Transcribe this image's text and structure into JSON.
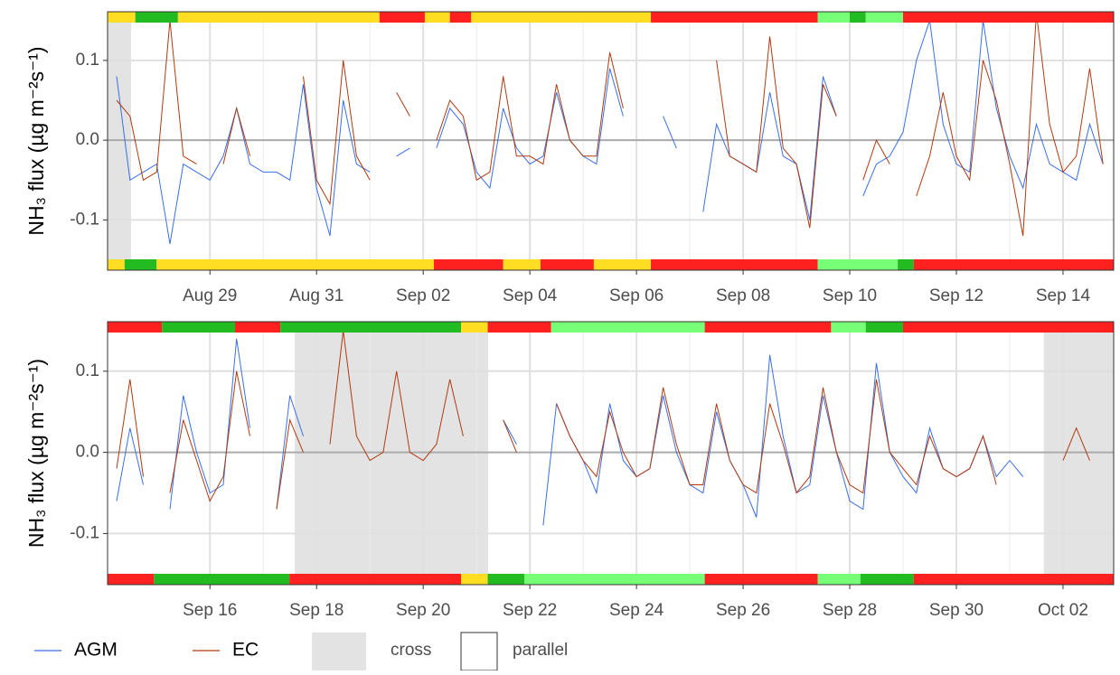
{
  "chart_data": [
    {
      "type": "line",
      "y_label": "NH₃ flux (µg m⁻²s⁻¹)",
      "xlim": [
        27.08,
        45.95
      ],
      "xticks": [
        {
          "value": 29,
          "label": "Aug 29"
        },
        {
          "value": 31,
          "label": "Aug 31"
        },
        {
          "value": 33,
          "label": "Sep 02"
        },
        {
          "value": 35,
          "label": "Sep 04"
        },
        {
          "value": 37,
          "label": "Sep 06"
        },
        {
          "value": 39,
          "label": "Sep 08"
        },
        {
          "value": 41,
          "label": "Sep 10"
        },
        {
          "value": 43,
          "label": "Sep 12"
        },
        {
          "value": 45,
          "label": "Sep 14"
        }
      ],
      "ylim": [
        -0.163,
        0.161
      ],
      "yticks": [
        -0.1,
        {
          "value": 0,
          "label": "0.0"
        },
        0.1
      ],
      "grid": true,
      "regions": [
        {
          "name": "cross",
          "color": "#e3e3e3"
        },
        {
          "name": "parallel",
          "color": "#ffffff"
        }
      ],
      "cross_periods": [
        [
          27.08,
          27.52
        ]
      ],
      "flags_top": [
        [
          27.08,
          27.6,
          "#ffdd22"
        ],
        [
          27.6,
          28.4,
          "#22bb22"
        ],
        [
          28.4,
          32.18,
          "#ffdd22"
        ],
        [
          32.18,
          33.03,
          "#ff2020"
        ],
        [
          33.03,
          33.5,
          "#ffdd22"
        ],
        [
          33.5,
          33.9,
          "#ff2020"
        ],
        [
          33.9,
          37.27,
          "#ffdd22"
        ],
        [
          37.27,
          40.4,
          "#ff2020"
        ],
        [
          40.4,
          41.0,
          "#77ff77"
        ],
        [
          41.0,
          41.3,
          "#22bb22"
        ],
        [
          41.3,
          42.0,
          "#77ff77"
        ],
        [
          42.0,
          45.95,
          "#ff2020"
        ]
      ],
      "flags_bottom": [
        [
          27.08,
          27.4,
          "#ffdd22"
        ],
        [
          27.4,
          28.0,
          "#22bb22"
        ],
        [
          28.0,
          33.2,
          "#ffdd22"
        ],
        [
          33.2,
          34.5,
          "#ff2020"
        ],
        [
          34.5,
          35.2,
          "#ffdd22"
        ],
        [
          35.2,
          36.2,
          "#ff2020"
        ],
        [
          36.2,
          37.27,
          "#ffdd22"
        ],
        [
          37.27,
          40.4,
          "#ff2020"
        ],
        [
          40.4,
          41.9,
          "#77ff77"
        ],
        [
          41.9,
          42.2,
          "#22bb22"
        ],
        [
          42.2,
          45.95,
          "#ff2020"
        ]
      ],
      "x": [
        27.25,
        27.5,
        27.75,
        28,
        28.25,
        28.5,
        28.75,
        29,
        29.25,
        29.5,
        29.75,
        30,
        30.25,
        30.5,
        30.75,
        31,
        31.25,
        31.5,
        31.75,
        32,
        32.25,
        32.5,
        32.75,
        33,
        33.25,
        33.5,
        33.75,
        34,
        34.25,
        34.5,
        34.75,
        35,
        35.25,
        35.5,
        35.75,
        36,
        36.25,
        36.5,
        36.75,
        37,
        37.25,
        37.5,
        37.75,
        38,
        38.25,
        38.5,
        38.75,
        39,
        39.25,
        39.5,
        39.75,
        40,
        40.25,
        40.5,
        40.75,
        41,
        41.25,
        41.5,
        41.75,
        42,
        42.25,
        42.5,
        42.75,
        43,
        43.25,
        43.5,
        43.75,
        44,
        44.25,
        44.5,
        44.75,
        45,
        45.25,
        45.5,
        45.75
      ],
      "series": [
        {
          "name": "AGM",
          "color": "#3a6fe8",
          "values": [
            0.08,
            -0.05,
            -0.04,
            -0.03,
            -0.13,
            -0.03,
            -0.04,
            -0.05,
            -0.02,
            0.04,
            -0.03,
            -0.04,
            -0.04,
            -0.05,
            0.07,
            -0.06,
            -0.12,
            0.05,
            -0.03,
            -0.04,
            null,
            -0.02,
            -0.01,
            null,
            -0.01,
            0.04,
            0.02,
            -0.04,
            -0.06,
            0.04,
            -0.01,
            -0.03,
            -0.02,
            0.06,
            0.0,
            -0.02,
            -0.03,
            0.09,
            0.03,
            null,
            null,
            0.03,
            -0.01,
            null,
            -0.09,
            0.02,
            -0.02,
            -0.03,
            -0.04,
            0.06,
            -0.02,
            -0.03,
            -0.1,
            0.08,
            0.03,
            null,
            -0.07,
            -0.03,
            -0.02,
            0.01,
            0.1,
            0.15,
            0.02,
            -0.03,
            -0.04,
            0.15,
            0.04,
            -0.02,
            -0.06,
            0.02,
            -0.03,
            -0.04,
            -0.05,
            0.02,
            -0.03
          ]
        },
        {
          "name": "EC",
          "color": "#b03a10",
          "values": [
            0.05,
            0.03,
            -0.05,
            -0.04,
            0.15,
            -0.02,
            -0.03,
            null,
            -0.03,
            0.04,
            -0.02,
            null,
            null,
            null,
            0.08,
            -0.05,
            -0.08,
            0.1,
            -0.02,
            -0.05,
            null,
            0.06,
            0.03,
            null,
            0.0,
            0.05,
            0.03,
            -0.05,
            -0.04,
            0.08,
            -0.02,
            -0.02,
            -0.03,
            0.07,
            0.0,
            -0.02,
            -0.02,
            0.11,
            0.04,
            null,
            null,
            null,
            0.03,
            null,
            null,
            0.1,
            -0.02,
            -0.03,
            -0.04,
            0.13,
            -0.01,
            -0.03,
            -0.11,
            0.07,
            0.03,
            null,
            -0.05,
            0.0,
            -0.03,
            null,
            -0.07,
            -0.02,
            0.06,
            -0.02,
            -0.05,
            0.1,
            0.05,
            -0.03,
            -0.12,
            0.16,
            0.02,
            -0.04,
            -0.02,
            0.09,
            -0.03
          ]
        }
      ]
    },
    {
      "type": "line",
      "y_label": "NH₃ flux (µg m⁻²s⁻¹)",
      "xlim": [
        45.08,
        63.95
      ],
      "xticks": [
        {
          "value": 47,
          "label": "Sep 16"
        },
        {
          "value": 49,
          "label": "Sep 18"
        },
        {
          "value": 51,
          "label": "Sep 20"
        },
        {
          "value": 53,
          "label": "Sep 22"
        },
        {
          "value": 55,
          "label": "Sep 24"
        },
        {
          "value": 57,
          "label": "Sep 26"
        },
        {
          "value": 59,
          "label": "Sep 28"
        },
        {
          "value": 61,
          "label": "Sep 30"
        },
        {
          "value": 63,
          "label": "Oct 02"
        }
      ],
      "ylim": [
        -0.163,
        0.161
      ],
      "yticks": [
        -0.1,
        {
          "value": 0,
          "label": "0.0"
        },
        0.1
      ],
      "grid": true,
      "cross_periods": [
        [
          48.59,
          52.22
        ],
        [
          62.64,
          63.95
        ]
      ],
      "flags_top": [
        [
          45.08,
          46.1,
          "#ff2020"
        ],
        [
          46.1,
          47.47,
          "#22bb22"
        ],
        [
          47.47,
          48.32,
          "#ff2020"
        ],
        [
          48.32,
          51.71,
          "#22bb22"
        ],
        [
          51.71,
          52.21,
          "#ffdd22"
        ],
        [
          52.21,
          53.4,
          "#ff2020"
        ],
        [
          53.4,
          56.28,
          "#77ff77"
        ],
        [
          56.28,
          58.65,
          "#ff2020"
        ],
        [
          58.65,
          59.3,
          "#77ff77"
        ],
        [
          59.3,
          60.0,
          "#22bb22"
        ],
        [
          60.0,
          63.95,
          "#ff2020"
        ]
      ],
      "flags_bottom": [
        [
          45.08,
          45.95,
          "#ff2020"
        ],
        [
          45.95,
          48.49,
          "#22bb22"
        ],
        [
          48.49,
          51.71,
          "#ff2020"
        ],
        [
          51.71,
          52.21,
          "#ffdd22"
        ],
        [
          52.21,
          52.9,
          "#22bb22"
        ],
        [
          52.9,
          56.28,
          "#77ff77"
        ],
        [
          56.28,
          58.4,
          "#ff2020"
        ],
        [
          58.4,
          59.2,
          "#77ff77"
        ],
        [
          59.2,
          60.2,
          "#22bb22"
        ],
        [
          60.2,
          63.95,
          "#ff2020"
        ]
      ],
      "x": [
        45.25,
        45.5,
        45.75,
        46,
        46.25,
        46.5,
        46.75,
        47,
        47.25,
        47.5,
        47.75,
        48,
        48.25,
        48.5,
        48.75,
        49,
        49.25,
        49.5,
        49.75,
        50,
        50.25,
        50.5,
        50.75,
        51,
        51.25,
        51.5,
        51.75,
        52,
        52.25,
        52.5,
        52.75,
        53,
        53.25,
        53.5,
        53.75,
        54,
        54.25,
        54.5,
        54.75,
        55,
        55.25,
        55.5,
        55.75,
        56,
        56.25,
        56.5,
        56.75,
        57,
        57.25,
        57.5,
        57.75,
        58,
        58.25,
        58.5,
        58.75,
        59,
        59.25,
        59.5,
        59.75,
        60,
        60.25,
        60.5,
        60.75,
        61,
        61.25,
        61.5,
        61.75,
        62,
        62.25,
        62.5,
        62.75,
        63,
        63.25,
        63.5,
        63.75
      ],
      "series": [
        {
          "name": "AGM",
          "color": "#3a6fe8",
          "values": [
            -0.06,
            0.03,
            -0.04,
            null,
            -0.07,
            0.07,
            0.0,
            -0.05,
            -0.04,
            0.14,
            0.03,
            null,
            -0.07,
            0.07,
            0.02,
            null,
            null,
            null,
            null,
            null,
            null,
            null,
            null,
            null,
            null,
            null,
            null,
            null,
            null,
            0.04,
            0.01,
            null,
            -0.09,
            0.06,
            0.02,
            -0.01,
            -0.05,
            0.06,
            -0.01,
            -0.03,
            -0.02,
            0.07,
            0.0,
            -0.04,
            -0.05,
            0.05,
            -0.01,
            -0.04,
            -0.08,
            0.12,
            0.02,
            -0.05,
            -0.04,
            0.07,
            0.0,
            -0.06,
            -0.07,
            0.11,
            0.0,
            -0.03,
            -0.05,
            0.03,
            -0.02,
            -0.03,
            -0.02,
            0.02,
            -0.03,
            -0.01,
            -0.03,
            null,
            null,
            null,
            null,
            null,
            null
          ]
        },
        {
          "name": "EC",
          "color": "#b03a10",
          "values": [
            -0.02,
            0.09,
            -0.03,
            null,
            -0.05,
            0.04,
            -0.01,
            -0.06,
            -0.03,
            0.1,
            0.02,
            null,
            -0.07,
            0.04,
            0.0,
            null,
            0.01,
            0.15,
            0.02,
            -0.01,
            0.0,
            0.1,
            0.0,
            -0.01,
            0.01,
            0.09,
            0.02,
            null,
            null,
            0.04,
            0.0,
            null,
            null,
            0.06,
            0.02,
            -0.01,
            -0.03,
            0.05,
            0.0,
            -0.03,
            -0.02,
            0.08,
            0.01,
            -0.04,
            -0.04,
            0.06,
            -0.01,
            -0.04,
            -0.05,
            0.06,
            0.01,
            -0.05,
            -0.03,
            0.08,
            0.0,
            -0.04,
            -0.05,
            0.09,
            0.0,
            -0.02,
            -0.04,
            0.02,
            -0.02,
            -0.03,
            -0.02,
            0.02,
            -0.04,
            null,
            null,
            0.0,
            null,
            -0.01,
            0.03,
            -0.01,
            null
          ]
        }
      ]
    }
  ]
}
